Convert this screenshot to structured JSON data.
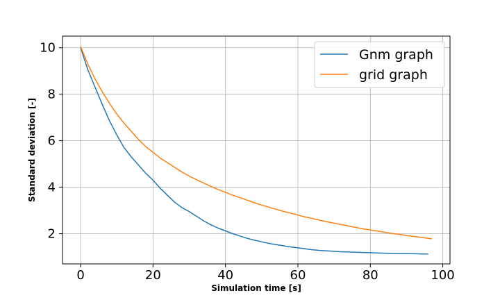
{
  "chart_data": {
    "type": "line",
    "title": "",
    "xlabel": "Simulation time [s]",
    "ylabel": "Standard deviation [-]",
    "xlim": [
      -5,
      102
    ],
    "ylim": [
      0.7,
      10.5
    ],
    "xticks": [
      0,
      20,
      40,
      60,
      80,
      100
    ],
    "yticks": [
      2,
      4,
      6,
      8,
      10
    ],
    "grid": true,
    "legend_position": "top-right",
    "series": [
      {
        "name": "Gnm graph",
        "color": "#1f77b4",
        "x": [
          0,
          2,
          4,
          6,
          8,
          10,
          12,
          14,
          16,
          18,
          20,
          22,
          24,
          26,
          28,
          30,
          32,
          34,
          36,
          38,
          40,
          42,
          44,
          46,
          48,
          50,
          52,
          54,
          56,
          58,
          60,
          62,
          64,
          66,
          68,
          70,
          72,
          74,
          76,
          78,
          80,
          82,
          84,
          86,
          88,
          90,
          92,
          94,
          96
        ],
        "y": [
          10.0,
          9.05,
          8.3,
          7.55,
          6.85,
          6.25,
          5.7,
          5.3,
          4.95,
          4.6,
          4.3,
          3.95,
          3.65,
          3.35,
          3.12,
          2.95,
          2.75,
          2.55,
          2.38,
          2.24,
          2.12,
          2.0,
          1.9,
          1.8,
          1.72,
          1.65,
          1.58,
          1.53,
          1.48,
          1.43,
          1.39,
          1.35,
          1.31,
          1.28,
          1.26,
          1.24,
          1.22,
          1.21,
          1.2,
          1.19,
          1.18,
          1.17,
          1.16,
          1.15,
          1.145,
          1.14,
          1.135,
          1.13,
          1.125
        ]
      },
      {
        "name": "grid graph",
        "color": "#ff7f0e",
        "x": [
          0,
          2,
          4,
          6,
          8,
          10,
          12,
          14,
          16,
          18,
          20,
          22,
          24,
          26,
          28,
          30,
          32,
          34,
          36,
          38,
          40,
          42,
          44,
          46,
          48,
          50,
          52,
          54,
          56,
          58,
          60,
          62,
          64,
          66,
          68,
          70,
          72,
          74,
          76,
          78,
          80,
          82,
          84,
          86,
          88,
          90,
          92,
          94,
          96,
          97
        ],
        "y": [
          10.05,
          9.3,
          8.65,
          8.1,
          7.6,
          7.15,
          6.75,
          6.4,
          6.05,
          5.75,
          5.5,
          5.25,
          5.05,
          4.85,
          4.65,
          4.48,
          4.32,
          4.18,
          4.03,
          3.9,
          3.78,
          3.66,
          3.55,
          3.44,
          3.33,
          3.23,
          3.14,
          3.05,
          2.96,
          2.88,
          2.8,
          2.72,
          2.65,
          2.58,
          2.51,
          2.45,
          2.39,
          2.33,
          2.27,
          2.21,
          2.16,
          2.11,
          2.06,
          2.01,
          1.97,
          1.92,
          1.88,
          1.84,
          1.8,
          1.78
        ]
      }
    ]
  }
}
